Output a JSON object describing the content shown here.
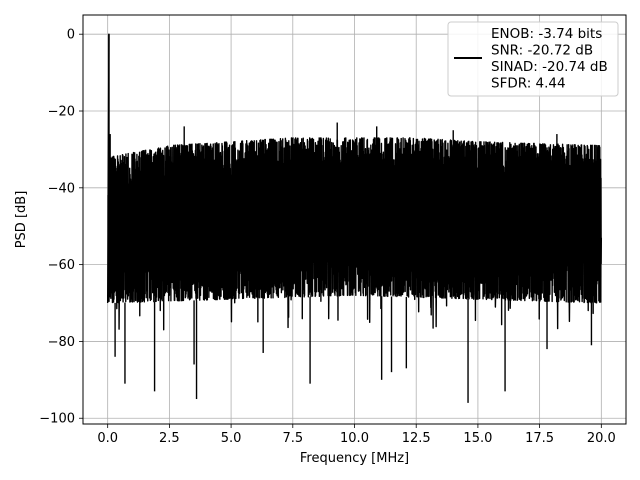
{
  "chart_data": {
    "type": "line",
    "title": "",
    "xlabel": "Frequency [MHz]",
    "ylabel": "PSD [dB]",
    "xlim": [
      -1.0,
      21.0
    ],
    "ylim": [
      -101.5,
      5.0
    ],
    "xticks": [
      0.0,
      2.5,
      5.0,
      7.5,
      10.0,
      12.5,
      15.0,
      17.5,
      20.0
    ],
    "xtick_labels": [
      "0.0",
      "2.5",
      "5.0",
      "7.5",
      "10.0",
      "12.5",
      "15.0",
      "17.5",
      "20.0"
    ],
    "yticks": [
      0,
      -20,
      -40,
      -60,
      -80,
      -100
    ],
    "ytick_labels": [
      "0",
      "−20",
      "−40",
      "−60",
      "−80",
      "−100"
    ],
    "grid": true,
    "legend_position": "top-right",
    "series": [
      {
        "name": "",
        "color": "#000000",
        "legend_lines": [
          "ENOB: -3.74 bits",
          "SNR: -20.72 dB",
          "SINAD: -20.74 dB",
          "SFDR: 4.44"
        ],
        "x_range": [
          0.0,
          20.0
        ],
        "peak": {
          "x": 0.05,
          "y": 0.0
        },
        "upper_envelope": [
          [
            0.1,
            -32
          ],
          [
            2.5,
            -29
          ],
          [
            5.0,
            -28
          ],
          [
            7.5,
            -27
          ],
          [
            10.0,
            -27
          ],
          [
            12.5,
            -27
          ],
          [
            15.0,
            -28
          ],
          [
            17.5,
            -28.5
          ],
          [
            20.0,
            -29
          ]
        ],
        "lower_envelope": [
          [
            0.1,
            -70
          ],
          [
            5.0,
            -69
          ],
          [
            10.0,
            -68
          ],
          [
            15.0,
            -69
          ],
          [
            20.0,
            -70
          ]
        ],
        "spikes_up": [
          [
            0.1,
            -26
          ],
          [
            3.1,
            -24
          ],
          [
            9.3,
            -23
          ],
          [
            10.9,
            -24
          ],
          [
            14.0,
            -25
          ],
          [
            18.2,
            -26
          ]
        ],
        "spikes_down": [
          [
            0.3,
            -84
          ],
          [
            0.7,
            -91
          ],
          [
            1.9,
            -93
          ],
          [
            3.5,
            -86
          ],
          [
            3.6,
            -95
          ],
          [
            6.3,
            -83
          ],
          [
            8.2,
            -91
          ],
          [
            11.1,
            -90
          ],
          [
            11.5,
            -88
          ],
          [
            12.1,
            -87
          ],
          [
            14.6,
            -96
          ],
          [
            16.1,
            -93
          ],
          [
            17.8,
            -82
          ],
          [
            19.6,
            -81
          ]
        ],
        "end_point": {
          "x": 20.0,
          "y": -53
        }
      }
    ]
  }
}
